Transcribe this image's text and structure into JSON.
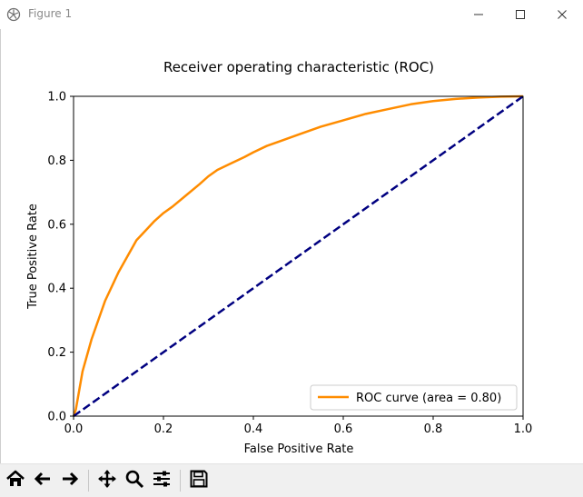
{
  "window": {
    "title": "Figure 1",
    "controls": [
      "minimize-icon",
      "maximize-icon",
      "close-icon"
    ]
  },
  "toolbar": {
    "buttons": [
      "home-icon",
      "back-arrow-icon",
      "forward-arrow-icon",
      "pan-icon",
      "zoom-icon",
      "configure-subplots-icon",
      "save-icon"
    ]
  },
  "chart_data": {
    "type": "line",
    "title": "Receiver operating characteristic (ROC)",
    "xlabel": "False Positive Rate",
    "ylabel": "True Positive Rate",
    "xlim": [
      0.0,
      1.0
    ],
    "ylim": [
      0.0,
      1.0
    ],
    "xticks": [
      "0.0",
      "0.2",
      "0.4",
      "0.6",
      "0.8",
      "1.0"
    ],
    "yticks": [
      "0.0",
      "0.2",
      "0.4",
      "0.6",
      "0.8",
      "1.0"
    ],
    "grid": false,
    "legend_position": "lower-right",
    "series": [
      {
        "name": "ROC curve (area = 0.80)",
        "color": "#ff8c00",
        "style": "solid",
        "x": [
          0.0,
          0.005,
          0.01,
          0.02,
          0.03,
          0.04,
          0.05,
          0.06,
          0.07,
          0.08,
          0.09,
          0.1,
          0.12,
          0.14,
          0.16,
          0.18,
          0.2,
          0.22,
          0.25,
          0.28,
          0.3,
          0.32,
          0.35,
          0.38,
          0.4,
          0.43,
          0.46,
          0.5,
          0.55,
          0.6,
          0.65,
          0.7,
          0.75,
          0.8,
          0.85,
          0.9,
          0.95,
          1.0
        ],
        "y": [
          0.0,
          0.02,
          0.06,
          0.14,
          0.19,
          0.24,
          0.28,
          0.32,
          0.36,
          0.39,
          0.42,
          0.45,
          0.5,
          0.55,
          0.58,
          0.61,
          0.635,
          0.655,
          0.69,
          0.725,
          0.75,
          0.77,
          0.79,
          0.81,
          0.825,
          0.845,
          0.86,
          0.88,
          0.905,
          0.925,
          0.945,
          0.96,
          0.975,
          0.985,
          0.992,
          0.996,
          0.999,
          1.0
        ]
      },
      {
        "name": "",
        "color": "#000080",
        "style": "dashed",
        "x": [
          0.0,
          1.0
        ],
        "y": [
          0.0,
          1.0
        ]
      }
    ]
  }
}
